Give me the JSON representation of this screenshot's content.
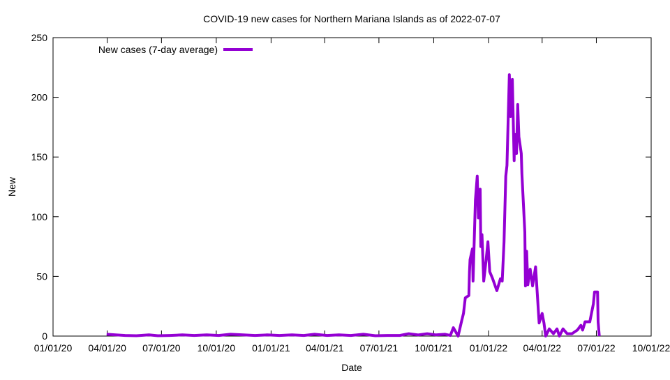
{
  "chart_data": {
    "type": "line",
    "title": "COVID-19 new cases for Northern Mariana Islands as of 2022-07-07",
    "xlabel": "Date",
    "ylabel": "New",
    "xlim": [
      "2020-01-01",
      "2022-10-01"
    ],
    "ylim": [
      0,
      250
    ],
    "x_ticks": [
      {
        "date": "2020-01-01",
        "label": "01/01/20"
      },
      {
        "date": "2020-04-01",
        "label": "04/01/20"
      },
      {
        "date": "2020-07-01",
        "label": "07/01/20"
      },
      {
        "date": "2020-10-01",
        "label": "10/01/20"
      },
      {
        "date": "2021-01-01",
        "label": "01/01/21"
      },
      {
        "date": "2021-04-01",
        "label": "04/01/21"
      },
      {
        "date": "2021-07-01",
        "label": "07/01/21"
      },
      {
        "date": "2021-10-01",
        "label": "10/01/21"
      },
      {
        "date": "2022-01-01",
        "label": "01/01/22"
      },
      {
        "date": "2022-04-01",
        "label": "04/01/22"
      },
      {
        "date": "2022-07-01",
        "label": "07/01/22"
      },
      {
        "date": "2022-10-01",
        "label": "10/01/22"
      }
    ],
    "y_ticks": [
      {
        "value": 0,
        "label": "0"
      },
      {
        "value": 50,
        "label": "50"
      },
      {
        "value": 100,
        "label": "100"
      },
      {
        "value": 150,
        "label": "150"
      },
      {
        "value": 200,
        "label": "200"
      },
      {
        "value": 250,
        "label": "250"
      }
    ],
    "grid": false,
    "legend_position": "top-left",
    "series": [
      {
        "name": "New cases (7-day average)",
        "color": "#9400d3",
        "points": [
          [
            "2020-03-31",
            1.5
          ],
          [
            "2020-04-15",
            1
          ],
          [
            "2020-05-01",
            0.5
          ],
          [
            "2020-05-20",
            0.3
          ],
          [
            "2020-06-10",
            1
          ],
          [
            "2020-06-25",
            0.3
          ],
          [
            "2020-07-15",
            0.5
          ],
          [
            "2020-08-05",
            1
          ],
          [
            "2020-08-25",
            0.5
          ],
          [
            "2020-09-15",
            1
          ],
          [
            "2020-10-05",
            0.5
          ],
          [
            "2020-10-25",
            1.5
          ],
          [
            "2020-11-15",
            1
          ],
          [
            "2020-12-05",
            0.5
          ],
          [
            "2020-12-25",
            1
          ],
          [
            "2021-01-15",
            0.5
          ],
          [
            "2021-02-05",
            1
          ],
          [
            "2021-02-25",
            0.5
          ],
          [
            "2021-03-15",
            1.5
          ],
          [
            "2021-04-05",
            0.5
          ],
          [
            "2021-04-25",
            1
          ],
          [
            "2021-05-15",
            0.5
          ],
          [
            "2021-06-05",
            1.5
          ],
          [
            "2021-06-25",
            0.3
          ],
          [
            "2021-07-15",
            0.5
          ],
          [
            "2021-08-05",
            0.5
          ],
          [
            "2021-08-20",
            2
          ],
          [
            "2021-09-05",
            1
          ],
          [
            "2021-09-20",
            2
          ],
          [
            "2021-10-05",
            1
          ],
          [
            "2021-10-20",
            1.5
          ],
          [
            "2021-10-29",
            0.5
          ],
          [
            "2021-11-03",
            7
          ],
          [
            "2021-11-11",
            0
          ],
          [
            "2021-11-17",
            13
          ],
          [
            "2021-11-20",
            19
          ],
          [
            "2021-11-23",
            32
          ],
          [
            "2021-11-29",
            34
          ],
          [
            "2021-11-30",
            54
          ],
          [
            "2021-12-01",
            64
          ],
          [
            "2021-12-05",
            73
          ],
          [
            "2021-12-06",
            46
          ],
          [
            "2021-12-10",
            114
          ],
          [
            "2021-12-13",
            134
          ],
          [
            "2021-12-15",
            99
          ],
          [
            "2021-12-18",
            123
          ],
          [
            "2021-12-19",
            75
          ],
          [
            "2021-12-21",
            85
          ],
          [
            "2021-12-24",
            46
          ],
          [
            "2021-12-28",
            64
          ],
          [
            "2021-12-31",
            79
          ],
          [
            "2022-01-03",
            54
          ],
          [
            "2022-01-08",
            48
          ],
          [
            "2022-01-15",
            38
          ],
          [
            "2022-01-21",
            48
          ],
          [
            "2022-01-24",
            46
          ],
          [
            "2022-01-27",
            79
          ],
          [
            "2022-01-30",
            134
          ],
          [
            "2022-02-01",
            143
          ],
          [
            "2022-02-05",
            219
          ],
          [
            "2022-02-07",
            184
          ],
          [
            "2022-02-10",
            215
          ],
          [
            "2022-02-13",
            147
          ],
          [
            "2022-02-14",
            169
          ],
          [
            "2022-02-17",
            153
          ],
          [
            "2022-02-19",
            194
          ],
          [
            "2022-02-21",
            167
          ],
          [
            "2022-02-25",
            153
          ],
          [
            "2022-02-26",
            136
          ],
          [
            "2022-03-03",
            87
          ],
          [
            "2022-03-04",
            42
          ],
          [
            "2022-03-06",
            71
          ],
          [
            "2022-03-08",
            43
          ],
          [
            "2022-03-12",
            56
          ],
          [
            "2022-03-16",
            42
          ],
          [
            "2022-03-21",
            58
          ],
          [
            "2022-03-27",
            11
          ],
          [
            "2022-04-01",
            19
          ],
          [
            "2022-04-04",
            11
          ],
          [
            "2022-04-07",
            0
          ],
          [
            "2022-04-13",
            6
          ],
          [
            "2022-04-20",
            2
          ],
          [
            "2022-04-26",
            6
          ],
          [
            "2022-04-30",
            0
          ],
          [
            "2022-05-06",
            6
          ],
          [
            "2022-05-13",
            2
          ],
          [
            "2022-05-21",
            2
          ],
          [
            "2022-05-30",
            5
          ],
          [
            "2022-06-05",
            9
          ],
          [
            "2022-06-08",
            5
          ],
          [
            "2022-06-12",
            12
          ],
          [
            "2022-06-20",
            12
          ],
          [
            "2022-06-26",
            27
          ],
          [
            "2022-06-28",
            37
          ],
          [
            "2022-07-03",
            37
          ],
          [
            "2022-07-04",
            12
          ],
          [
            "2022-07-06",
            0
          ]
        ]
      }
    ]
  }
}
